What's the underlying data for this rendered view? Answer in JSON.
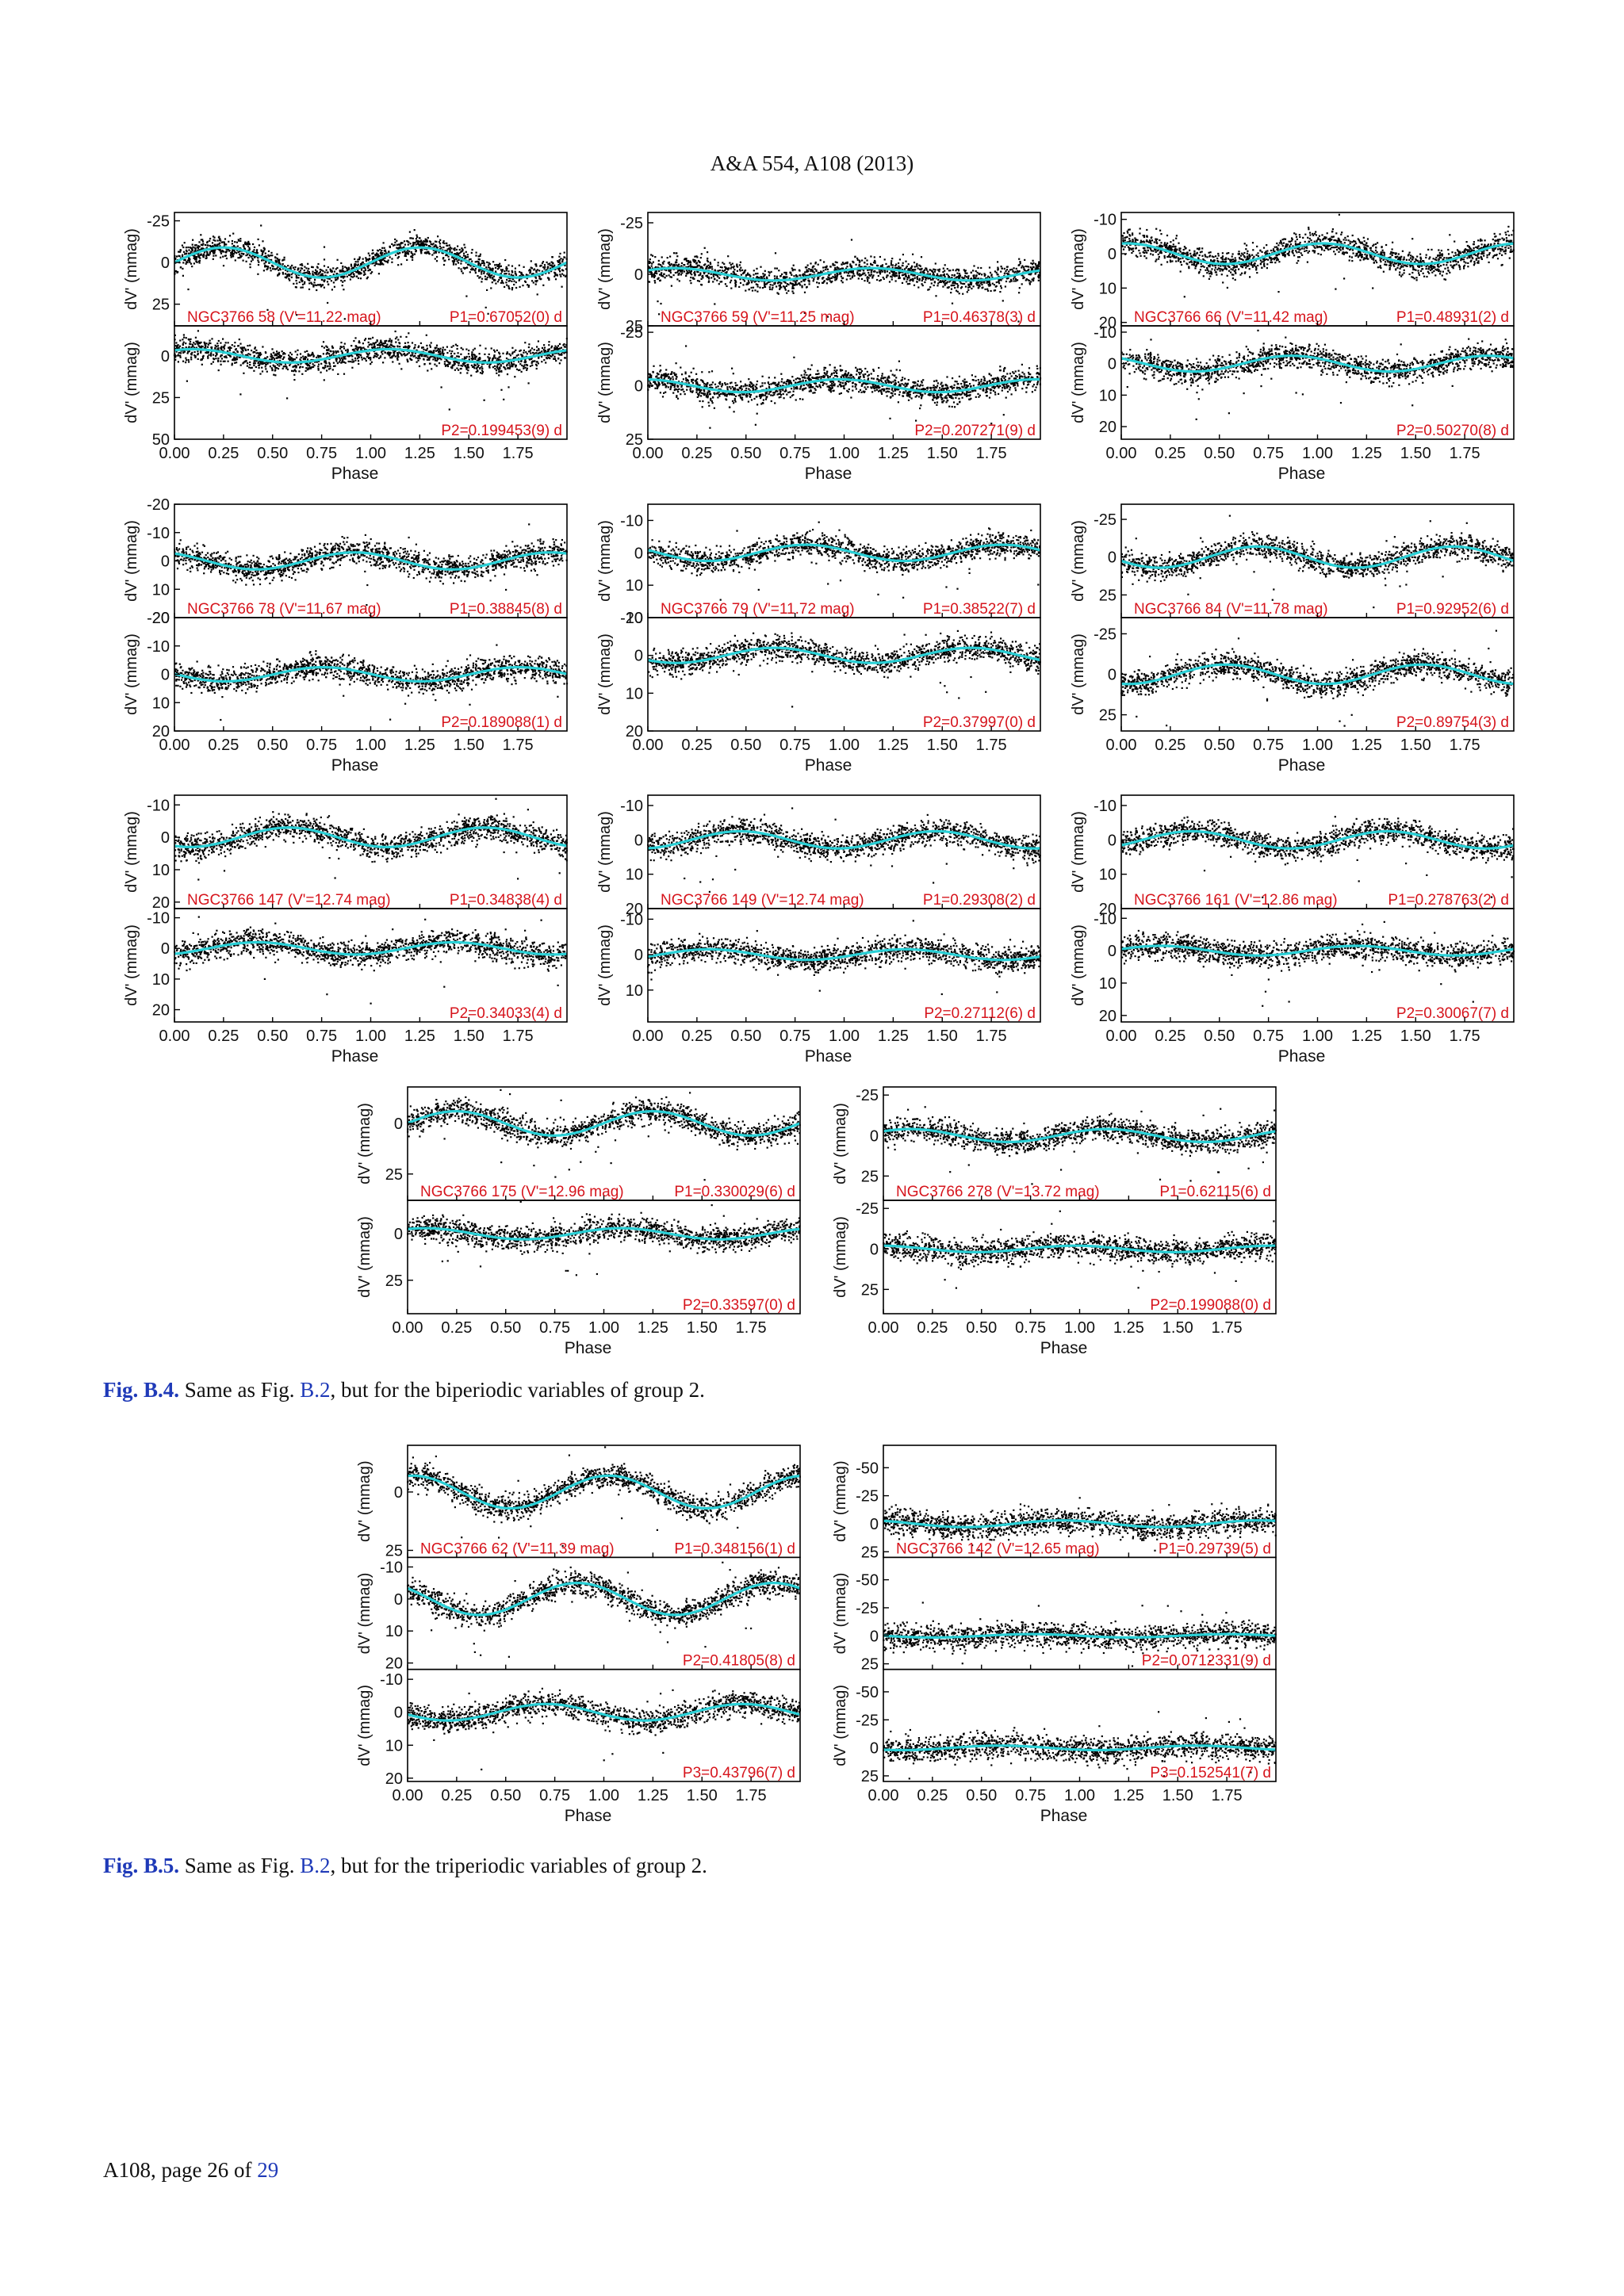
{
  "header": {
    "running_head": "A&A 554, A108 (2013)"
  },
  "axis_common": {
    "x_label": "Phase",
    "y_label": "dV' (mmag)",
    "x_ticks": [
      "0.00",
      "0.25",
      "0.50",
      "0.75",
      "1.00",
      "1.25",
      "1.50",
      "1.75"
    ]
  },
  "figures": [
    {
      "id": "B.4",
      "caption": {
        "label": "Fig. B.4.",
        "text_before": " Same as Fig. ",
        "link": "B.2",
        "text_after": ", but for the biperiodic variables of group 2."
      }
    },
    {
      "id": "B.5",
      "caption": {
        "label": "Fig. B.5.",
        "text_before": " Same as Fig. ",
        "link": "B.2",
        "text_after": ", but for the triperiodic variables of group 2."
      }
    }
  ],
  "chart_data": [
    {
      "type": "scatter",
      "figure": "B.4",
      "star": "NGC3766 58 (V'=11.22 mag)",
      "panels": [
        {
          "period_label": "P1=0.67052(0) d",
          "period_days": 0.67052,
          "amplitude_mmag": 9,
          "yticks": [
            "-25",
            "0",
            "25"
          ],
          "ylim": [
            -30,
            38
          ]
        },
        {
          "period_label": "P2=0.199453(9) d",
          "period_days": 0.199453,
          "amplitude_mmag": 4,
          "yticks": [
            "0",
            "25",
            "50"
          ],
          "ylim": [
            -18,
            50
          ]
        }
      ]
    },
    {
      "type": "scatter",
      "figure": "B.4",
      "star": "NGC3766 59 (V'=11.25 mag)",
      "panels": [
        {
          "period_label": "P1=0.46378(3) d",
          "period_days": 0.46378,
          "amplitude_mmag": 3,
          "yticks": [
            "-25",
            "0",
            "25"
          ],
          "ylim": [
            -30,
            25
          ]
        },
        {
          "period_label": "P2=0.207271(9) d",
          "period_days": 0.207271,
          "amplitude_mmag": 3,
          "yticks": [
            "-25",
            "0",
            "25"
          ],
          "ylim": [
            -28,
            25
          ]
        }
      ]
    },
    {
      "type": "scatter",
      "figure": "B.4",
      "star": "NGC3766 66 (V'=11.42 mag)",
      "panels": [
        {
          "period_label": "P1=0.48931(2) d",
          "period_days": 0.48931,
          "amplitude_mmag": 3,
          "yticks": [
            "-10",
            "0",
            "10",
            "20"
          ],
          "ylim": [
            -12,
            21
          ]
        },
        {
          "period_label": "P2=0.50270(8) d",
          "period_days": 0.5027,
          "amplitude_mmag": 2.5,
          "yticks": [
            "-10",
            "0",
            "10",
            "20"
          ],
          "ylim": [
            -12,
            24
          ]
        }
      ]
    },
    {
      "type": "scatter",
      "figure": "B.4",
      "star": "NGC3766 78 (V'=11.67 mag)",
      "panels": [
        {
          "period_label": "P1=0.38845(8) d",
          "period_days": 0.38845,
          "amplitude_mmag": 3,
          "yticks": [
            "-20",
            "-10",
            "0",
            "10",
            "20"
          ],
          "ylim": [
            -20,
            20
          ]
        },
        {
          "period_label": "P2=0.189088(1) d",
          "period_days": 0.189088,
          "amplitude_mmag": 2.5,
          "yticks": [
            "-20",
            "-10",
            "0",
            "10",
            "20"
          ],
          "ylim": [
            -20,
            20
          ]
        }
      ]
    },
    {
      "type": "scatter",
      "figure": "B.4",
      "star": "NGC3766 79 (V'=11.72 mag)",
      "panels": [
        {
          "period_label": "P1=0.38522(7) d",
          "period_days": 0.38522,
          "amplitude_mmag": 2.5,
          "yticks": [
            "-10",
            "0",
            "10",
            "20"
          ],
          "ylim": [
            -15,
            20
          ]
        },
        {
          "period_label": "P2=0.37997(0) d",
          "period_days": 0.37997,
          "amplitude_mmag": 2,
          "yticks": [
            "-10",
            "0",
            "10",
            "20"
          ],
          "ylim": [
            -10,
            20
          ]
        }
      ]
    },
    {
      "type": "scatter",
      "figure": "B.4",
      "star": "NGC3766 84 (V'=11.78 mag)",
      "panels": [
        {
          "period_label": "P1=0.92952(6) d",
          "period_days": 0.92952,
          "amplitude_mmag": 7,
          "yticks": [
            "-25",
            "0",
            "25"
          ],
          "ylim": [
            -35,
            40
          ]
        },
        {
          "period_label": "P2=0.89754(3) d",
          "period_days": 0.89754,
          "amplitude_mmag": 6,
          "yticks": [
            "-25",
            "0",
            "25"
          ],
          "ylim": [
            -35,
            35
          ]
        }
      ]
    },
    {
      "type": "scatter",
      "figure": "B.4",
      "star": "NGC3766 147 (V'=12.74 mag)",
      "panels": [
        {
          "period_label": "P1=0.34838(4) d",
          "period_days": 0.34838,
          "amplitude_mmag": 3,
          "yticks": [
            "-10",
            "0",
            "10",
            "20"
          ],
          "ylim": [
            -13,
            22
          ]
        },
        {
          "period_label": "P2=0.34033(4) d",
          "period_days": 0.34033,
          "amplitude_mmag": 2,
          "yticks": [
            "-10",
            "0",
            "10",
            "20"
          ],
          "ylim": [
            -13,
            24
          ]
        }
      ]
    },
    {
      "type": "scatter",
      "figure": "B.4",
      "star": "NGC3766 149 (V'=12.74 mag)",
      "panels": [
        {
          "period_label": "P1=0.29308(2) d",
          "period_days": 0.29308,
          "amplitude_mmag": 2.5,
          "yticks": [
            "-10",
            "0",
            "10",
            "20"
          ],
          "ylim": [
            -13,
            20
          ]
        },
        {
          "period_label": "P2=0.27112(6) d",
          "period_days": 0.27112,
          "amplitude_mmag": 1.5,
          "yticks": [
            "-10",
            "0",
            "10"
          ],
          "ylim": [
            -13,
            19
          ]
        }
      ]
    },
    {
      "type": "scatter",
      "figure": "B.4",
      "star": "NGC3766 161 (V'=12.86 mag)",
      "panels": [
        {
          "period_label": "P1=0.278763(2) d",
          "period_days": 0.278763,
          "amplitude_mmag": 2.5,
          "yticks": [
            "-10",
            "0",
            "10",
            "20"
          ],
          "ylim": [
            -13,
            20
          ]
        },
        {
          "period_label": "P2=0.30067(7) d",
          "period_days": 0.30067,
          "amplitude_mmag": 1.5,
          "yticks": [
            "-10",
            "0",
            "10",
            "20"
          ],
          "ylim": [
            -13,
            22
          ]
        }
      ]
    },
    {
      "type": "scatter",
      "figure": "B.4",
      "star": "NGC3766 175 (V'=12.96 mag)",
      "panels": [
        {
          "period_label": "P1=0.330029(6) d",
          "period_days": 0.330029,
          "amplitude_mmag": 6,
          "yticks": [
            "0",
            "25"
          ],
          "ylim": [
            -18,
            38
          ]
        },
        {
          "period_label": "P2=0.33597(0) d",
          "period_days": 0.33597,
          "amplitude_mmag": 3,
          "yticks": [
            "0",
            "25"
          ],
          "ylim": [
            -18,
            43
          ]
        }
      ]
    },
    {
      "type": "scatter",
      "figure": "B.4",
      "star": "NGC3766 278 (V'=13.72 mag)",
      "panels": [
        {
          "period_label": "P1=0.62115(6) d",
          "period_days": 0.62115,
          "amplitude_mmag": 4,
          "yticks": [
            "-25",
            "0",
            "25"
          ],
          "ylim": [
            -30,
            40
          ]
        },
        {
          "period_label": "P2=0.199088(0) d",
          "period_days": 0.199088,
          "amplitude_mmag": 2,
          "yticks": [
            "-25",
            "0",
            "25"
          ],
          "ylim": [
            -30,
            40
          ]
        }
      ]
    },
    {
      "type": "scatter",
      "figure": "B.5",
      "star": "NGC3766 62 (V'=11.39 mag)",
      "panels": [
        {
          "period_label": "P1=0.348156(1) d",
          "period_days": 0.348156,
          "amplitude_mmag": 7,
          "yticks": [
            "0",
            "25"
          ],
          "ylim": [
            -20,
            28
          ]
        },
        {
          "period_label": "P2=0.41805(8) d",
          "period_days": 0.41805,
          "amplitude_mmag": 5,
          "yticks": [
            "-10",
            "0",
            "10",
            "20"
          ],
          "ylim": [
            -13,
            22
          ]
        },
        {
          "period_label": "P3=0.43796(7) d",
          "period_days": 0.43796,
          "amplitude_mmag": 2.5,
          "yticks": [
            "-10",
            "0",
            "10",
            "20"
          ],
          "ylim": [
            -13,
            21
          ]
        }
      ]
    },
    {
      "type": "scatter",
      "figure": "B.5",
      "star": "NGC3766 142 (V'=12.65 mag)",
      "panels": [
        {
          "period_label": "P1=0.29739(5) d",
          "period_days": 0.29739,
          "amplitude_mmag": 3,
          "yticks": [
            "-50",
            "-25",
            "0",
            "25"
          ],
          "ylim": [
            -70,
            30
          ]
        },
        {
          "period_label": "P2=0.0712331(9) d",
          "period_days": 0.0712331,
          "amplitude_mmag": 1.5,
          "yticks": [
            "-50",
            "-25",
            "0",
            "25"
          ],
          "ylim": [
            -70,
            30
          ]
        },
        {
          "period_label": "P3=0.152541(7) d",
          "period_days": 0.152541,
          "amplitude_mmag": 2,
          "yticks": [
            "-50",
            "-25",
            "0",
            "25"
          ],
          "ylim": [
            -70,
            30
          ]
        }
      ]
    }
  ],
  "footer": {
    "page_prefix": "A108, page 26 of ",
    "page_total": "29"
  }
}
